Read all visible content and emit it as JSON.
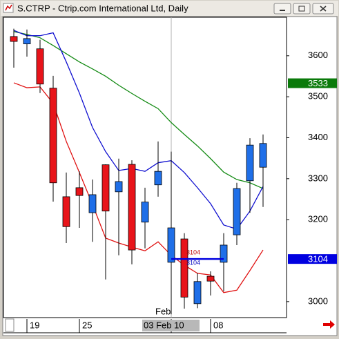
{
  "chart_data": {
    "type": "candlestick",
    "title": "S.CTRP - Ctrip.com International Ltd, Daily",
    "categories": [
      null,
      "19",
      null,
      null,
      null,
      "25",
      null,
      null,
      null,
      null,
      null,
      null,
      "03 Feb 10",
      null,
      null,
      "08",
      null,
      null,
      null,
      null
    ],
    "month_label": "Feb",
    "open": [
      3647,
      3629,
      3617,
      3521,
      3256,
      3278,
      3217,
      3334,
      3268,
      3335,
      3194,
      3285,
      3096,
      3153,
      2995,
      3062,
      3096,
      3163,
      3295,
      3328
    ],
    "high": [
      3666,
      3664,
      3639,
      3551,
      3315,
      3318,
      3298,
      3335,
      3349,
      3345,
      3278,
      3391,
      3366,
      3167,
      3070,
      3074,
      3167,
      3290,
      3399,
      3408
    ],
    "low": [
      3571,
      3598,
      3509,
      3244,
      3143,
      3180,
      3146,
      3054,
      3113,
      3091,
      3130,
      3256,
      2969,
      2983,
      2984,
      3015,
      3025,
      3138,
      3217,
      3231
    ],
    "close": [
      3635,
      3642,
      3531,
      3290,
      3183,
      3259,
      3261,
      3221,
      3293,
      3126,
      3243,
      3318,
      3180,
      3011,
      3049,
      3050,
      3138,
      3276,
      3382,
      3386
    ],
    "up_color": "#1f6fe8",
    "down_color": "#e8141a",
    "series": [
      {
        "color": "#138a13",
        "values": [
          3659,
          3652,
          3644,
          3625,
          3605,
          3585,
          3568,
          3550,
          3528,
          3508,
          3489,
          3471,
          3437,
          3408,
          3380,
          3349,
          3316,
          3298,
          3290,
          3276
        ]
      },
      {
        "color": "#1010d0",
        "values": [
          3662,
          3649,
          3649,
          3656,
          3585,
          3509,
          3425,
          3366,
          3320,
          3325,
          3318,
          3339,
          3344,
          3315,
          3278,
          3239,
          3187,
          3177,
          3221,
          3281
        ]
      },
      {
        "color": "#e01010",
        "values": [
          3534,
          3522,
          3524,
          3484,
          3391,
          3315,
          3237,
          3155,
          3143,
          3133,
          3124,
          3146,
          3113,
          3089,
          3069,
          3065,
          3022,
          3028,
          3076,
          3126
        ]
      }
    ],
    "ylim": [
      2961,
      3694
    ],
    "yticks": [
      3000,
      3200,
      3300,
      3400,
      3500,
      3600
    ],
    "price_labels": [
      {
        "value": 3533,
        "color": "#0a7a0a"
      },
      {
        "value": 3104,
        "color": "#0000e0"
      }
    ],
    "hline": {
      "value": 3104,
      "color": "#0000e0"
    }
  }
}
